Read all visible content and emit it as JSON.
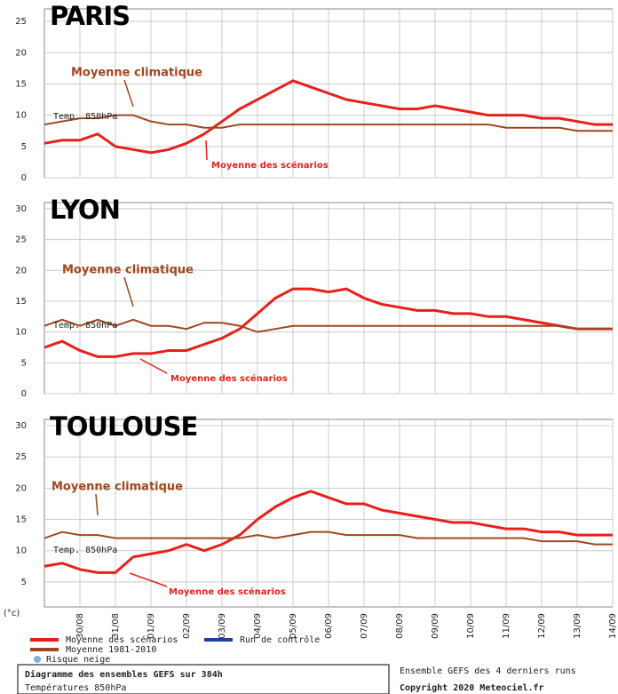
{
  "chart_data": [
    {
      "type": "line",
      "title": "PARIS",
      "annotations": [
        "Moyenne climatique",
        "Moyenne des scénarios",
        "Temp. 850hPa"
      ],
      "x": [
        0,
        12,
        24,
        36,
        48,
        60,
        72,
        84,
        96,
        108,
        120,
        132,
        144,
        156,
        168,
        180,
        192,
        204,
        216,
        228,
        240,
        252,
        264,
        276,
        288,
        300,
        312,
        324,
        336,
        348,
        360,
        372,
        384
      ],
      "xlim": [
        0,
        384
      ],
      "ylim": [
        0,
        27
      ],
      "yticks": [
        0,
        5,
        10,
        15,
        20,
        25
      ],
      "series": [
        {
          "color": "#e8201a",
          "values": [
            5.5,
            6,
            6,
            7,
            5,
            4.5,
            4,
            4.5,
            5.5,
            7,
            9,
            11,
            12.5,
            14,
            15.5,
            14.5,
            13.5,
            12.5,
            12,
            11.5,
            11,
            11,
            11.5,
            11,
            10.5,
            10,
            10,
            10,
            9.5,
            9.5,
            9,
            8.5,
            8.5
          ]
        },
        {
          "color": "#a0471d",
          "values": [
            8.5,
            9,
            9.5,
            9.5,
            10,
            10,
            9,
            8.5,
            8.5,
            8,
            8,
            8.5,
            8.5,
            8.5,
            8.5,
            8.5,
            8.5,
            8.5,
            8.5,
            8.5,
            8.5,
            8.5,
            8.5,
            8.5,
            8.5,
            8.5,
            8,
            8,
            8,
            8,
            7.5,
            7.5,
            7.5
          ]
        }
      ]
    },
    {
      "type": "line",
      "title": "LYON",
      "annotations": [
        "Moyenne climatique",
        "Moyenne des scénarios",
        "Temp. 850hPa"
      ],
      "x": [
        0,
        12,
        24,
        36,
        48,
        60,
        72,
        84,
        96,
        108,
        120,
        132,
        144,
        156,
        168,
        180,
        192,
        204,
        216,
        228,
        240,
        252,
        264,
        276,
        288,
        300,
        312,
        324,
        336,
        348,
        360,
        372,
        384
      ],
      "xlim": [
        0,
        384
      ],
      "ylim": [
        0,
        31
      ],
      "yticks": [
        0,
        5,
        10,
        15,
        20,
        25,
        30
      ],
      "series": [
        {
          "color": "#e8201a",
          "values": [
            7.5,
            8.5,
            7,
            6,
            6,
            6.5,
            6.5,
            7,
            7,
            8,
            9,
            10.5,
            13,
            15.5,
            17,
            17,
            16.5,
            17,
            15.5,
            14.5,
            14,
            13.5,
            13.5,
            13,
            13,
            12.5,
            12.5,
            12,
            11.5,
            11,
            10.5,
            10.5,
            10.5
          ]
        },
        {
          "color": "#a0471d",
          "values": [
            11,
            12,
            11,
            12,
            11,
            12,
            11,
            11,
            10.5,
            11.5,
            11.5,
            11,
            10,
            10.5,
            11,
            11,
            11,
            11,
            11,
            11,
            11,
            11,
            11,
            11,
            11,
            11,
            11,
            11,
            11,
            11,
            10.5,
            10.5,
            10.5
          ]
        }
      ]
    },
    {
      "type": "line",
      "title": "TOULOUSE",
      "annotations": [
        "Moyenne climatique",
        "Moyenne des scénarios",
        "Temp. 850hPa"
      ],
      "unit": "(°c)",
      "x": [
        0,
        12,
        24,
        36,
        48,
        60,
        72,
        84,
        96,
        108,
        120,
        132,
        144,
        156,
        168,
        180,
        192,
        204,
        216,
        228,
        240,
        252,
        264,
        276,
        288,
        300,
        312,
        324,
        336,
        348,
        360,
        372,
        384
      ],
      "xlim": [
        0,
        384
      ],
      "ylim": [
        1,
        31
      ],
      "yticks": [
        5,
        10,
        15,
        20,
        25,
        30
      ],
      "xticks": [
        {
          "value": 24,
          "label": "30/08"
        },
        {
          "value": 48,
          "label": "31/08"
        },
        {
          "value": 72,
          "label": "01/09"
        },
        {
          "value": 96,
          "label": "02/09"
        },
        {
          "value": 120,
          "label": "03/09"
        },
        {
          "value": 144,
          "label": "04/09"
        },
        {
          "value": 168,
          "label": "05/09"
        },
        {
          "value": 192,
          "label": "06/09"
        },
        {
          "value": 216,
          "label": "07/09"
        },
        {
          "value": 240,
          "label": "08/09"
        },
        {
          "value": 264,
          "label": "09/09"
        },
        {
          "value": 288,
          "label": "10/09"
        },
        {
          "value": 312,
          "label": "11/09"
        },
        {
          "value": 336,
          "label": "12/09"
        },
        {
          "value": 360,
          "label": "13/09"
        },
        {
          "value": 384,
          "label": "14/09"
        }
      ],
      "series": [
        {
          "color": "#e8201a",
          "values": [
            7.5,
            8,
            7,
            6.5,
            6.5,
            9,
            9.5,
            10,
            11,
            10,
            11,
            12.5,
            15,
            17,
            18.5,
            19.5,
            18.5,
            17.5,
            17.5,
            16.5,
            16,
            15.5,
            15,
            14.5,
            14.5,
            14,
            13.5,
            13.5,
            13,
            13,
            12.5,
            12.5,
            12.5
          ]
        },
        {
          "color": "#a0471d",
          "values": [
            12,
            13,
            12.5,
            12.5,
            12,
            12,
            12,
            12,
            12,
            12,
            12,
            12,
            12.5,
            12,
            12.5,
            13,
            13,
            12.5,
            12.5,
            12.5,
            12.5,
            12,
            12,
            12,
            12,
            12,
            12,
            12,
            11.5,
            11.5,
            11.5,
            11,
            11
          ]
        }
      ]
    }
  ],
  "legend": [
    {
      "name": "Moyenne des scénarios",
      "color": "#e8201a"
    },
    {
      "name": "Moyenne 1981-2010",
      "color": "#a0471d"
    },
    {
      "name": "Run de contrôle",
      "color": "#1f3f9a"
    },
    {
      "name": "Risque neige",
      "color": "#7fb0e0"
    }
  ],
  "footer": {
    "title": "Diagramme des ensembles GEFS sur 384h",
    "subtitle": "Températures 850hPa",
    "note": "Ensemble GEFS des 4 derniers runs",
    "copyright": "Copyright 2020 Meteociel.fr"
  }
}
